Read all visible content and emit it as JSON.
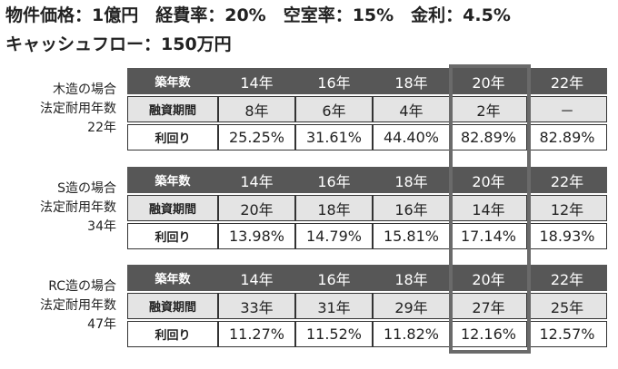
{
  "header": {
    "line1": "物件価格：1億円　経費率：20%　空室率：15%　金利：4.5%",
    "line2": "キャッシュフロー：150万円"
  },
  "tables": [
    {
      "label": [
        "木造の場合",
        "法定耐用年数",
        "22年"
      ],
      "rows": [
        [
          "築年数",
          "14年",
          "16年",
          "18年",
          "20年",
          "22年"
        ],
        [
          "融資期間",
          "8年",
          "6年",
          "4年",
          "2年",
          "－"
        ],
        [
          "利回り",
          "25.25%",
          "31.61%",
          "44.40%",
          "82.89%",
          "82.89%"
        ]
      ]
    },
    {
      "label": [
        "S造の場合",
        "法定耐用年数",
        "34年"
      ],
      "rows": [
        [
          "築年数",
          "14年",
          "16年",
          "18年",
          "20年",
          "22年"
        ],
        [
          "融資期間",
          "20年",
          "18年",
          "16年",
          "14年",
          "12年"
        ],
        [
          "利回り",
          "13.98%",
          "14.79%",
          "15.81%",
          "17.14%",
          "18.93%"
        ]
      ]
    },
    {
      "label": [
        "RC造の場合",
        "法定耐用年数",
        "47年"
      ],
      "rows": [
        [
          "築年数",
          "14年",
          "16年",
          "18年",
          "20年",
          "22年"
        ],
        [
          "融資期間",
          "33年",
          "31年",
          "29年",
          "27年",
          "25年"
        ],
        [
          "利回り",
          "11.27%",
          "11.52%",
          "11.82%",
          "12.16%",
          "12.57%"
        ]
      ]
    }
  ]
}
